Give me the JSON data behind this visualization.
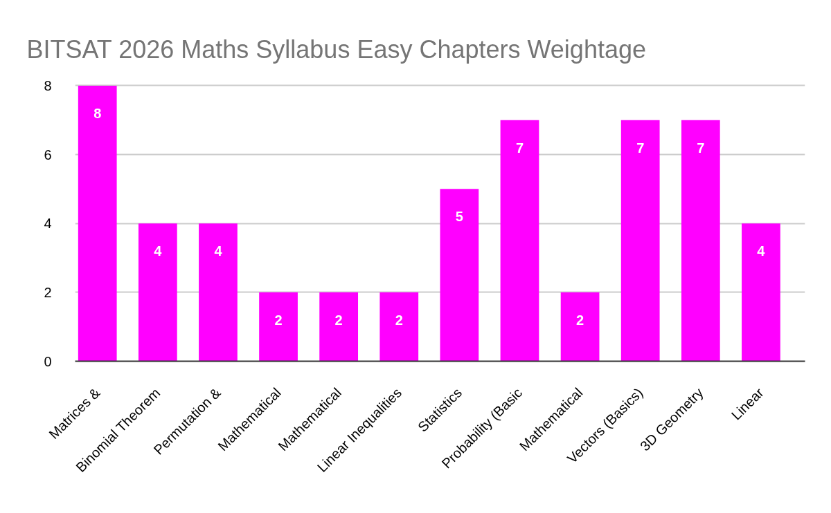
{
  "chart_data": {
    "type": "bar",
    "title": "BITSAT 2026 Maths Syllabus Easy Chapters Weightage",
    "categories": [
      "Matrices &",
      "Binomial Theorem",
      "Permutation &",
      "Mathematical",
      "Mathematical",
      "Linear Inequalities",
      "Statistics",
      "Probability (Basic",
      "Mathematical",
      "Vectors (Basics)",
      "3D Geometry",
      "Linear"
    ],
    "values": [
      8,
      4,
      4,
      2,
      2,
      2,
      5,
      7,
      2,
      7,
      7,
      4
    ],
    "color": "#ff00ff",
    "ylim": [
      0,
      8
    ],
    "yticks": [
      0,
      2,
      4,
      6,
      8
    ],
    "grid": "y",
    "data_labels": true
  }
}
